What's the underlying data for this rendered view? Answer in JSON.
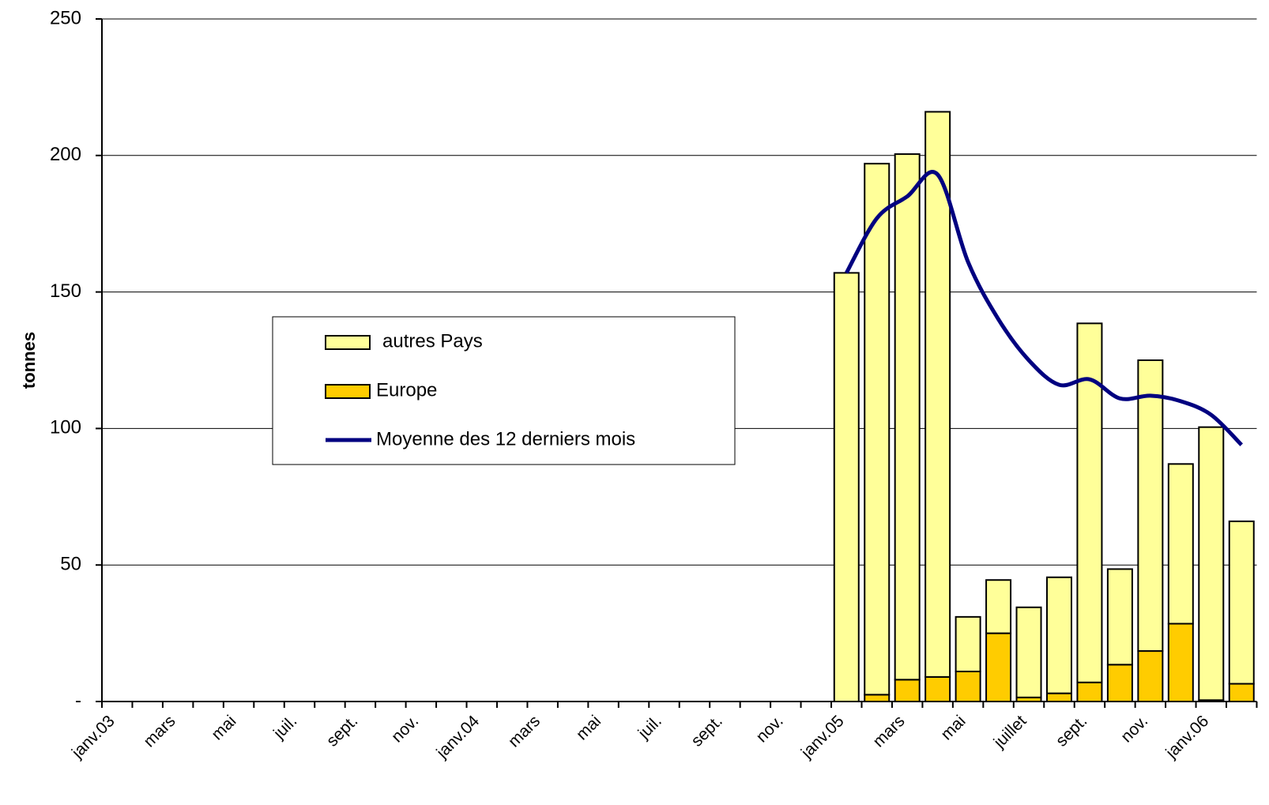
{
  "chart_data": {
    "type": "bar",
    "stacked": true,
    "y_label": "tonnes",
    "categories": [
      "janv.03",
      null,
      "mars",
      null,
      "mai",
      null,
      "juil.",
      null,
      "sept.",
      null,
      "nov.",
      null,
      "janv.04",
      null,
      "mars",
      null,
      "mai",
      null,
      "juil.",
      null,
      "sept.",
      null,
      "nov.",
      null,
      "janv.05",
      null,
      "mars",
      null,
      "mai",
      null,
      "juillet",
      null,
      "sept.",
      null,
      "nov.",
      null,
      "janv.06",
      null
    ],
    "series": [
      {
        "name": "autres Pays",
        "type": "bar",
        "color": "#FFFF99",
        "values": [
          0,
          0,
          0,
          0,
          0,
          0,
          0,
          0,
          0,
          0,
          0,
          0,
          0,
          0,
          0,
          0,
          0,
          0,
          0,
          0,
          0,
          0,
          0,
          0,
          157,
          194.5,
          192.5,
          207,
          20,
          19.5,
          33,
          42.5,
          131.5,
          35,
          106.5,
          58.5,
          100,
          59.5
        ]
      },
      {
        "name": "Europe",
        "type": "bar",
        "color": "#FFCC00",
        "values": [
          0,
          0,
          0,
          0,
          0,
          0,
          0,
          0,
          0,
          0,
          0,
          0,
          0,
          0,
          0,
          0,
          0,
          0,
          0,
          0,
          0,
          0,
          0,
          0,
          0,
          2.5,
          8,
          9,
          11,
          25,
          1.5,
          3,
          7,
          13.5,
          18.5,
          28.5,
          0.5,
          6.5
        ]
      },
      {
        "name": "Moyenne des 12 derniers mois",
        "type": "line",
        "color": "#000080",
        "values": [
          null,
          null,
          null,
          null,
          null,
          null,
          null,
          null,
          null,
          null,
          null,
          null,
          null,
          null,
          null,
          null,
          null,
          null,
          null,
          null,
          null,
          null,
          null,
          null,
          157,
          177,
          185,
          193,
          161,
          140,
          125,
          116,
          118,
          111,
          112,
          110,
          105,
          94
        ]
      }
    ],
    "ylim": [
      0,
      250
    ],
    "yticks": [
      {
        "value": 0,
        "label": "-"
      },
      50,
      100,
      150,
      200,
      250
    ],
    "grid": true
  }
}
